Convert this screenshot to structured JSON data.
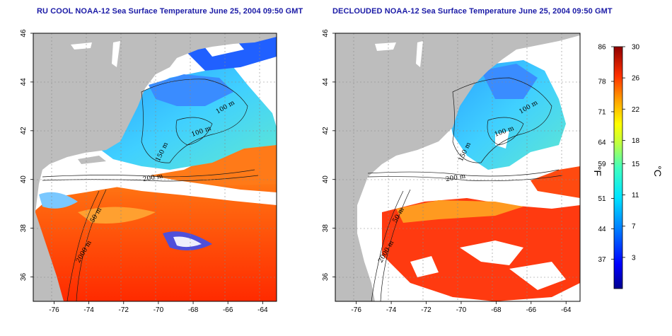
{
  "titles": {
    "left": "RU COOL NOAA-12 Sea Surface Temperature June 25, 2004 09:50 GMT",
    "right": "DECLOUDED NOAA-12 Sea Surface Temperature June 25, 2004 09:50 GMT"
  },
  "axes": {
    "lon_ticks": [
      -76,
      -74,
      -72,
      -70,
      -68,
      -66,
      -64
    ],
    "lat_ticks": [
      36,
      38,
      40,
      42,
      44,
      46
    ],
    "lon_range": [
      -77.2,
      -63.2
    ],
    "lat_range": [
      35.0,
      46.0
    ]
  },
  "contour_labels": [
    {
      "text": "100 m",
      "lon": -66.1,
      "lat": 42.9,
      "rot": -30
    },
    {
      "text": "100 m",
      "lon": -67.5,
      "lat": 41.9,
      "rot": -20
    },
    {
      "text": "150 m",
      "lon": -69.7,
      "lat": 41.1,
      "rot": -65
    },
    {
      "text": "200 m",
      "lon": -70.3,
      "lat": 40.0,
      "rot": -10
    },
    {
      "text": "50 m",
      "lon": -73.5,
      "lat": 38.5,
      "rot": -60
    },
    {
      "text": "2000 m",
      "lon": -74.2,
      "lat": 37.0,
      "rot": -60
    }
  ],
  "colorbar": {
    "unit_f": "°F",
    "unit_c": "°C",
    "f_ticks": [
      "86",
      "78",
      "71",
      "64",
      "59",
      "51",
      "44",
      "37"
    ],
    "c_ticks": [
      "30",
      "26",
      "22",
      "18",
      "15",
      "11",
      "7",
      "3"
    ],
    "range_c": [
      -1,
      30
    ]
  },
  "colors": {
    "land": "#bdbdbd",
    "title": "#1a1aa6",
    "cloud": "#ffffff"
  }
}
